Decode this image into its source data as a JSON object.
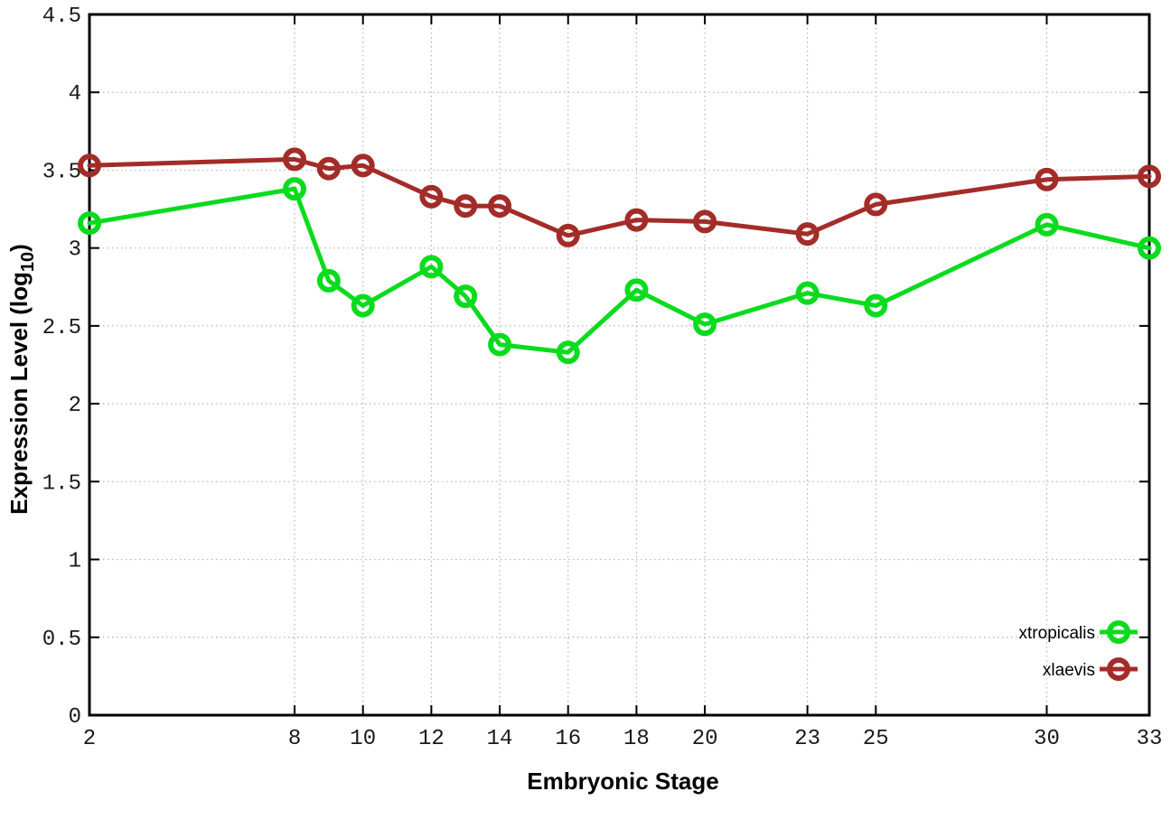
{
  "chart_data": {
    "type": "line",
    "title": "",
    "xlabel": "Embryonic Stage",
    "ylabel_main": "Expression Level (log",
    "ylabel_sub": "10",
    "ylabel_end": ")",
    "xlim": [
      2,
      33
    ],
    "ylim": [
      0,
      4.5
    ],
    "grid": true,
    "legend_position": "bottom-right",
    "xticks": [
      2,
      8,
      10,
      12,
      14,
      16,
      18,
      20,
      23,
      25,
      30,
      33
    ],
    "yticks": [
      0,
      0.5,
      1,
      1.5,
      2,
      2.5,
      3,
      3.5,
      4,
      4.5
    ],
    "x": [
      2,
      8,
      9,
      10,
      12,
      13,
      14,
      16,
      18,
      20,
      23,
      25,
      30,
      33
    ],
    "series": [
      {
        "name": "xtropicalis",
        "color": "#0bdb1e",
        "marker": "open-circle",
        "values": [
          3.16,
          3.38,
          2.79,
          2.63,
          2.88,
          2.69,
          2.38,
          2.33,
          2.73,
          2.51,
          2.71,
          2.63,
          3.15,
          3.0
        ]
      },
      {
        "name": "xlaevis",
        "color": "#a32c28",
        "marker": "open-circle",
        "values": [
          3.53,
          3.57,
          3.51,
          3.53,
          3.33,
          3.27,
          3.27,
          3.08,
          3.18,
          3.17,
          3.09,
          3.28,
          3.44,
          3.46
        ]
      }
    ]
  },
  "style": {
    "grid_color": "#b5b5b5",
    "border_color": "#000000",
    "background": "#ffffff",
    "text_color": "#000000"
  }
}
